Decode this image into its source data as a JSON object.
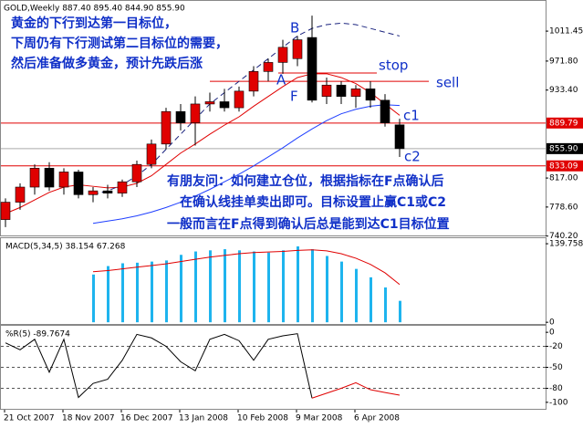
{
  "chart_data": [
    {
      "type": "candlestick",
      "title": "GOLD,Weekly  887.40 895.40 844.90 855.90",
      "categories": [
        "21 Oct 2007",
        null,
        null,
        null,
        "18 Nov 2007",
        null,
        null,
        null,
        "16 Dec 2007",
        null,
        null,
        null,
        "13 Jan 2008",
        null,
        null,
        null,
        "10 Feb 2008",
        null,
        null,
        null,
        "9 Mar 2008",
        null,
        null,
        null,
        "6 Apr 2008",
        null,
        null,
        null
      ],
      "open": [
        762,
        785,
        805,
        830,
        805,
        825,
        795,
        800,
        797,
        812,
        835,
        862,
        905,
        890,
        915,
        918,
        910,
        932,
        958,
        970,
        975,
        1003,
        925,
        940,
        925,
        935,
        920,
        887.4
      ],
      "high": [
        790,
        810,
        835,
        838,
        830,
        828,
        805,
        808,
        815,
        840,
        868,
        910,
        915,
        925,
        930,
        935,
        938,
        965,
        975,
        1000,
        1005,
        1032,
        950,
        945,
        940,
        945,
        928,
        895.4
      ],
      "low": [
        752,
        775,
        795,
        800,
        795,
        790,
        785,
        790,
        792,
        805,
        830,
        855,
        880,
        860,
        905,
        905,
        905,
        925,
        945,
        955,
        965,
        917,
        915,
        915,
        910,
        910,
        885,
        844.9
      ],
      "close": [
        785,
        805,
        830,
        805,
        825,
        795,
        800,
        797,
        812,
        835,
        862,
        905,
        890,
        915,
        918,
        910,
        932,
        958,
        970,
        990,
        1000,
        920,
        940,
        925,
        935,
        920,
        890,
        855.9
      ],
      "up_color": "#e00000",
      "down_color": "#000000",
      "overlays": [
        {
          "color": "#e00000",
          "dash": false,
          "values": [
            770,
            778,
            788,
            798,
            805,
            808,
            806,
            804,
            805,
            810,
            820,
            835,
            850,
            862,
            875,
            887,
            898,
            912,
            925,
            938,
            950,
            955,
            955,
            950,
            942,
            930,
            915,
            900
          ]
        },
        {
          "color": "#1a237e",
          "dash": true,
          "values": [
            null,
            null,
            null,
            null,
            null,
            null,
            795,
            800,
            808,
            820,
            835,
            855,
            875,
            895,
            915,
            930,
            945,
            960,
            975,
            990,
            1005,
            1015,
            1020,
            1022,
            1020,
            1015,
            1010,
            1005
          ]
        },
        {
          "color": "#1f3fff",
          "dash": false,
          "values": [
            null,
            null,
            null,
            null,
            null,
            null,
            757,
            760,
            763,
            767,
            772,
            778,
            785,
            793,
            802,
            812,
            822,
            833,
            845,
            857,
            870,
            882,
            893,
            902,
            908,
            912,
            914,
            913
          ]
        }
      ],
      "horizontal_lines": [
        {
          "value": 889.79,
          "color": "#e00000"
        },
        {
          "value": 833.09,
          "color": "#e00000"
        }
      ],
      "last_price": {
        "value": 855.9,
        "label": "855.90"
      },
      "drawn_lines": [
        {
          "value": 956,
          "color": "#e00000"
        },
        {
          "value": 945,
          "color": "#e00000"
        }
      ],
      "annotations": [
        "黄金的下行到达第一目标位，",
        "下周仍有下行测试第二目标位的需要，",
        "然后准备做多黄金，预计先跌后涨",
        "有朋友问：如何建立仓位，根据指标在F点确认后",
        "在确认线挂单卖出即可。目标设置止赢C1或C2",
        "一般而言在F点得到确认后总是能到达C1目标位置",
        "B",
        "A",
        "F",
        "stop",
        "sell",
        "c1",
        "c2"
      ],
      "ylim": [
        741,
        1049
      ],
      "yticks": [
        1011.45,
        {
          "value": 971.8,
          "label": "971.80"
        },
        {
          "value": 933.4,
          "label": "933.40"
        },
        {
          "value": 817,
          "label": "817.00"
        },
        {
          "value": 778.6,
          "label": "778.60"
        },
        {
          "value": 740.2,
          "label": "740.20"
        }
      ]
    },
    {
      "type": "bar",
      "title": "MACD(5,34,5) 38.154 67.268",
      "values": [
        null,
        null,
        null,
        null,
        null,
        null,
        85,
        100,
        105,
        106,
        108,
        110,
        120,
        126,
        128,
        130,
        128,
        126,
        124,
        128,
        135,
        130,
        118,
        108,
        95,
        80,
        62,
        38.154
      ],
      "color": "#1eb4ee",
      "signal": {
        "color": "#e00000",
        "values": [
          null,
          null,
          null,
          null,
          null,
          null,
          90,
          92,
          95,
          98,
          101,
          104,
          108,
          112,
          116,
          119,
          122,
          124,
          125,
          126,
          128,
          129,
          127,
          122,
          114,
          103,
          88,
          67.268
        ]
      },
      "ylim": [
        -3,
        148
      ],
      "yticks": [
        139.758,
        0
      ]
    },
    {
      "type": "line",
      "title": "%R(5) -89.7674",
      "series": [
        {
          "color": "#000000",
          "values": [
            -15,
            -25,
            -10,
            -57,
            -10,
            -93,
            -73,
            -67,
            -40,
            -3,
            -8,
            -20,
            -42,
            -55,
            -10,
            -3,
            -12,
            -40,
            -10,
            -5,
            -2,
            -94,
            null,
            null,
            null,
            null,
            null,
            null
          ]
        },
        {
          "color": "#e00000",
          "values": [
            null,
            null,
            null,
            null,
            null,
            null,
            null,
            null,
            null,
            null,
            null,
            null,
            null,
            null,
            null,
            null,
            null,
            null,
            null,
            null,
            null,
            -94,
            -87,
            -80,
            -72,
            -82,
            -86,
            -89.7674
          ]
        }
      ],
      "ylim": [
        -108,
        8
      ],
      "yticks": [
        0,
        -20,
        -50,
        -80,
        -100
      ],
      "grid": true
    }
  ]
}
